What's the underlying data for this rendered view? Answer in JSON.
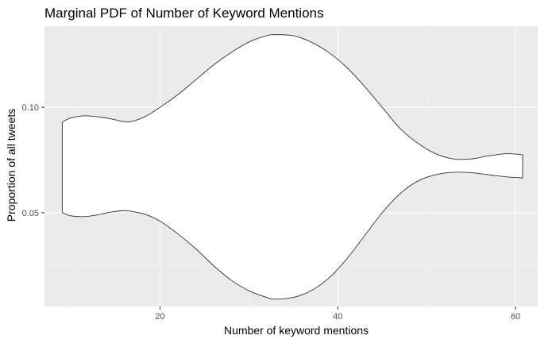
{
  "chart_data": {
    "type": "area",
    "title": "Marginal PDF of Number of Keyword Mentions",
    "xlabel": "Number of keyword mentions",
    "ylabel": "Proportion of all tweets",
    "xlim": [
      7,
      62.5
    ],
    "ylim": [
      0.0055,
      0.1385
    ],
    "x_ticks": [
      20,
      40,
      60
    ],
    "x_tick_labels": [
      "20",
      "40",
      "60"
    ],
    "y_ticks": [
      0.05,
      0.1
    ],
    "y_tick_labels": [
      "0.05",
      "0.10"
    ],
    "grid": true,
    "legend": "none",
    "series": [
      {
        "values_note_free": true,
        "upper": [
          [
            9,
            0.093
          ],
          [
            10,
            0.095
          ],
          [
            11.5,
            0.096
          ],
          [
            13,
            0.0955
          ],
          [
            14.5,
            0.0945
          ],
          [
            16,
            0.0932
          ],
          [
            17,
            0.0935
          ],
          [
            18.5,
            0.096
          ],
          [
            20,
            0.1
          ],
          [
            22,
            0.106
          ],
          [
            24,
            0.113
          ],
          [
            26,
            0.12
          ],
          [
            28,
            0.126
          ],
          [
            30,
            0.131
          ],
          [
            32,
            0.134
          ],
          [
            33,
            0.1345
          ],
          [
            35,
            0.134
          ],
          [
            37,
            0.131
          ],
          [
            39,
            0.126
          ],
          [
            41,
            0.119
          ],
          [
            43,
            0.11
          ],
          [
            45,
            0.1
          ],
          [
            47,
            0.09
          ],
          [
            49,
            0.083
          ],
          [
            51,
            0.078
          ],
          [
            53,
            0.0755
          ],
          [
            55,
            0.0755
          ],
          [
            57,
            0.077
          ],
          [
            59,
            0.078
          ],
          [
            60.8,
            0.0775
          ]
        ],
        "lower": [
          [
            9,
            0.05
          ],
          [
            10,
            0.0485
          ],
          [
            11.5,
            0.0482
          ],
          [
            13,
            0.049
          ],
          [
            14.5,
            0.0503
          ],
          [
            16,
            0.051
          ],
          [
            17,
            0.0505
          ],
          [
            18.5,
            0.049
          ],
          [
            20,
            0.046
          ],
          [
            22,
            0.04
          ],
          [
            24,
            0.033
          ],
          [
            26,
            0.025
          ],
          [
            28,
            0.018
          ],
          [
            30,
            0.013
          ],
          [
            32,
            0.0098
          ],
          [
            33,
            0.009
          ],
          [
            35,
            0.0098
          ],
          [
            37,
            0.013
          ],
          [
            39,
            0.019
          ],
          [
            41,
            0.028
          ],
          [
            43,
            0.039
          ],
          [
            45,
            0.05
          ],
          [
            47,
            0.059
          ],
          [
            49,
            0.065
          ],
          [
            51,
            0.068
          ],
          [
            53,
            0.0692
          ],
          [
            55,
            0.069
          ],
          [
            57,
            0.068
          ],
          [
            59,
            0.067
          ],
          [
            60.8,
            0.0665
          ]
        ]
      }
    ]
  }
}
